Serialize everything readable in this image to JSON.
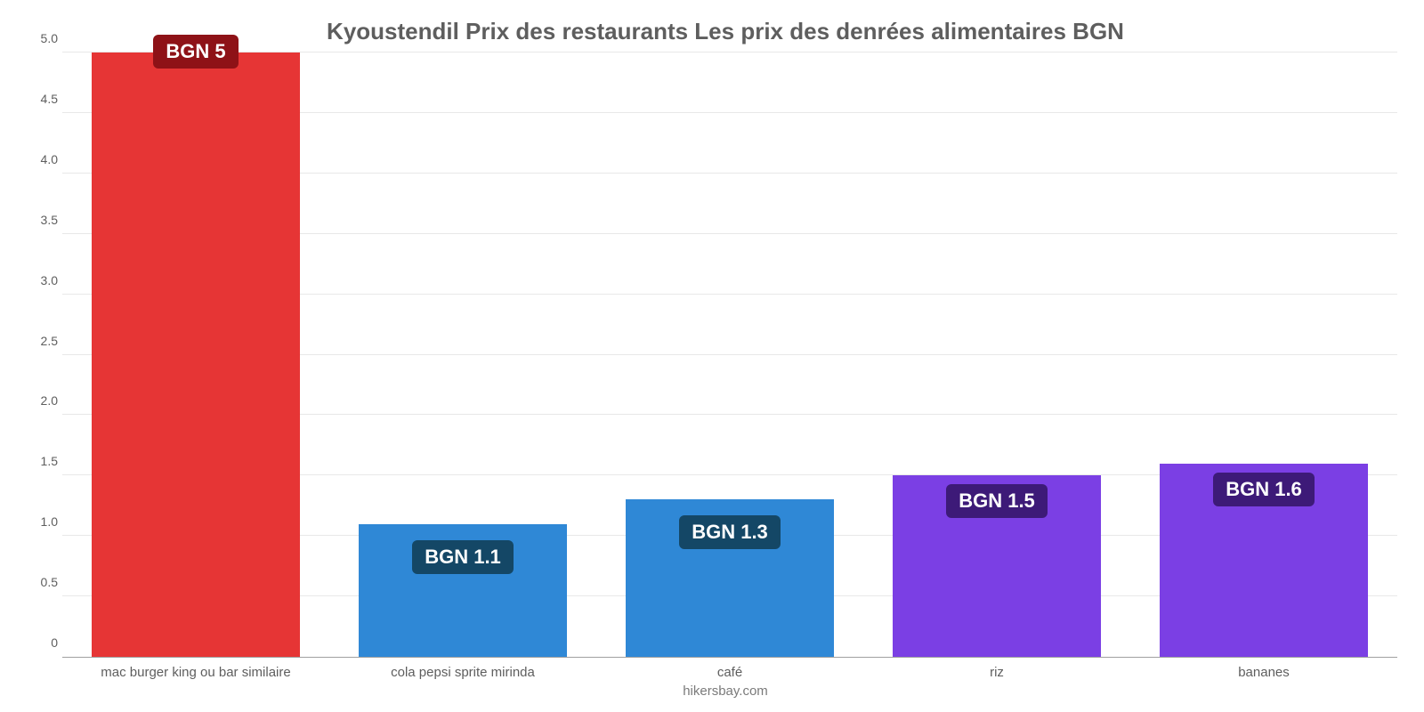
{
  "chart": {
    "type": "bar",
    "title": "Kyoustendil Prix des restaurants Les prix des denrées alimentaires BGN",
    "title_fontsize": 26,
    "title_color": "#5e5e5e",
    "background_color": "#ffffff",
    "grid_color": "#e8e8e8",
    "axis_line_color": "#a0a0a0",
    "bar_width_ratio": 0.78,
    "ylim": [
      0,
      5.0
    ],
    "ytick_step": 0.5,
    "yticks": [
      "0",
      "0.5",
      "1.0",
      "1.5",
      "2.0",
      "2.5",
      "3.0",
      "3.5",
      "4.0",
      "4.5",
      "5.0"
    ],
    "categories": [
      "mac burger king ou bar similaire",
      "cola pepsi sprite mirinda",
      "café",
      "riz",
      "bananes"
    ],
    "values": [
      5.0,
      1.1,
      1.3,
      1.5,
      1.6
    ],
    "bar_colors": [
      "#e63535",
      "#2f88d6",
      "#2f88d6",
      "#7b3fe4",
      "#7b3fe4"
    ],
    "value_labels": [
      "BGN 5",
      "BGN 1.1",
      "BGN 1.3",
      "BGN 1.5",
      "BGN 1.6"
    ],
    "label_bg_colors": [
      "#8e1217",
      "#144766",
      "#144766",
      "#3d1a78",
      "#3d1a78"
    ],
    "label_fontsize": 22,
    "tick_fontsize": 14,
    "tick_color": "#5e5e5e",
    "label_offsets": [
      -20,
      18,
      18,
      10,
      10
    ],
    "attribution": "hikersbay.com",
    "attribution_color": "#7a7a7a"
  }
}
